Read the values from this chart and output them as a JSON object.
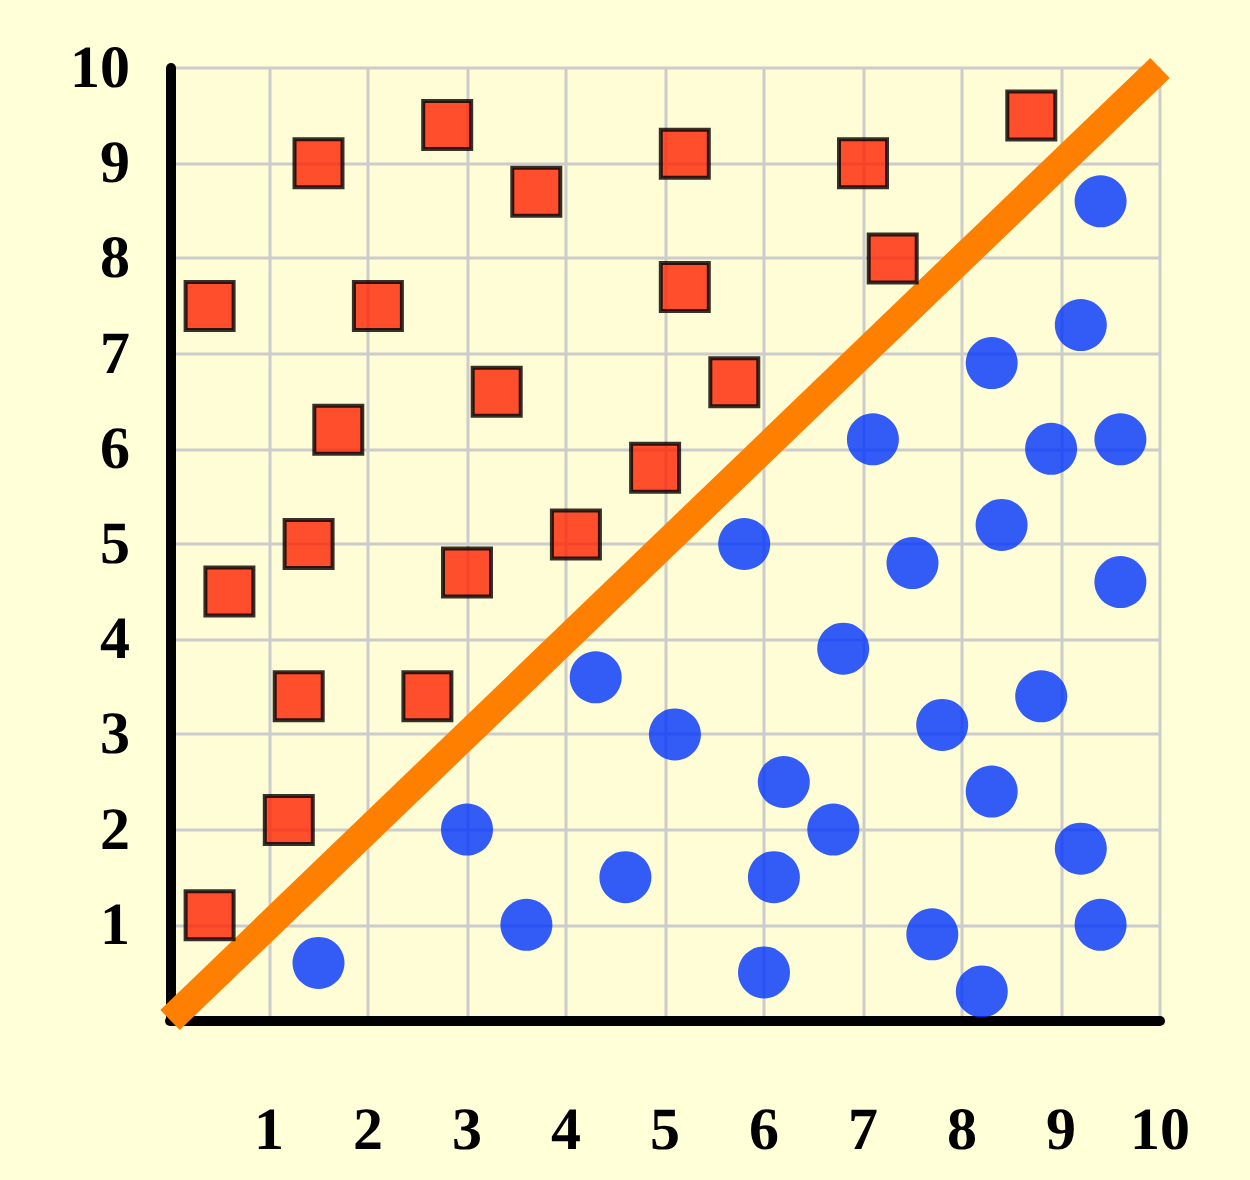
{
  "chart_data": {
    "type": "scatter",
    "xlim": [
      0,
      10
    ],
    "ylim": [
      0,
      10
    ],
    "xticks": [
      1,
      2,
      3,
      4,
      5,
      6,
      7,
      8,
      9,
      10
    ],
    "yticks": [
      1,
      2,
      3,
      4,
      5,
      6,
      7,
      8,
      9,
      10
    ],
    "grid": true,
    "series": [
      {
        "type": "line",
        "color": "#ff7f00",
        "marker": "none",
        "x": [
          0,
          10
        ],
        "values": [
          0,
          10
        ]
      },
      {
        "color": "#ff2200",
        "marker": "square",
        "x": [
          0.4,
          1.5,
          2.8,
          3.7,
          5.2,
          2.1,
          5.2,
          3.3,
          1.7,
          4.9,
          4.1,
          1.4,
          0.6,
          3.0,
          5.7,
          7.0,
          7.3,
          8.7,
          1.3,
          2.6,
          1.2,
          0.4
        ],
        "values": [
          7.5,
          9.0,
          9.4,
          8.7,
          9.1,
          7.5,
          7.7,
          6.6,
          6.2,
          5.8,
          5.1,
          5.0,
          4.5,
          4.7,
          6.7,
          9.0,
          8.0,
          9.5,
          3.4,
          3.4,
          2.1,
          1.1
        ]
      },
      {
        "color": "#0033ff",
        "marker": "circle",
        "x": [
          1.5,
          3.0,
          3.6,
          4.3,
          4.6,
          5.1,
          9.4,
          9.2,
          8.3,
          7.1,
          8.9,
          9.6,
          8.4,
          5.8,
          7.5,
          9.6,
          6.8,
          8.8,
          7.8,
          6.2,
          8.3,
          6.7,
          9.2,
          6.1,
          9.4,
          7.7,
          6.0,
          8.2
        ],
        "values": [
          0.6,
          2.0,
          1.0,
          3.6,
          1.5,
          3.0,
          8.6,
          7.3,
          6.9,
          6.1,
          6.0,
          6.1,
          5.2,
          5.0,
          4.8,
          4.6,
          3.9,
          3.4,
          3.1,
          2.5,
          2.4,
          2.0,
          1.8,
          1.5,
          1.0,
          0.9,
          0.5,
          0.3
        ]
      }
    ]
  }
}
